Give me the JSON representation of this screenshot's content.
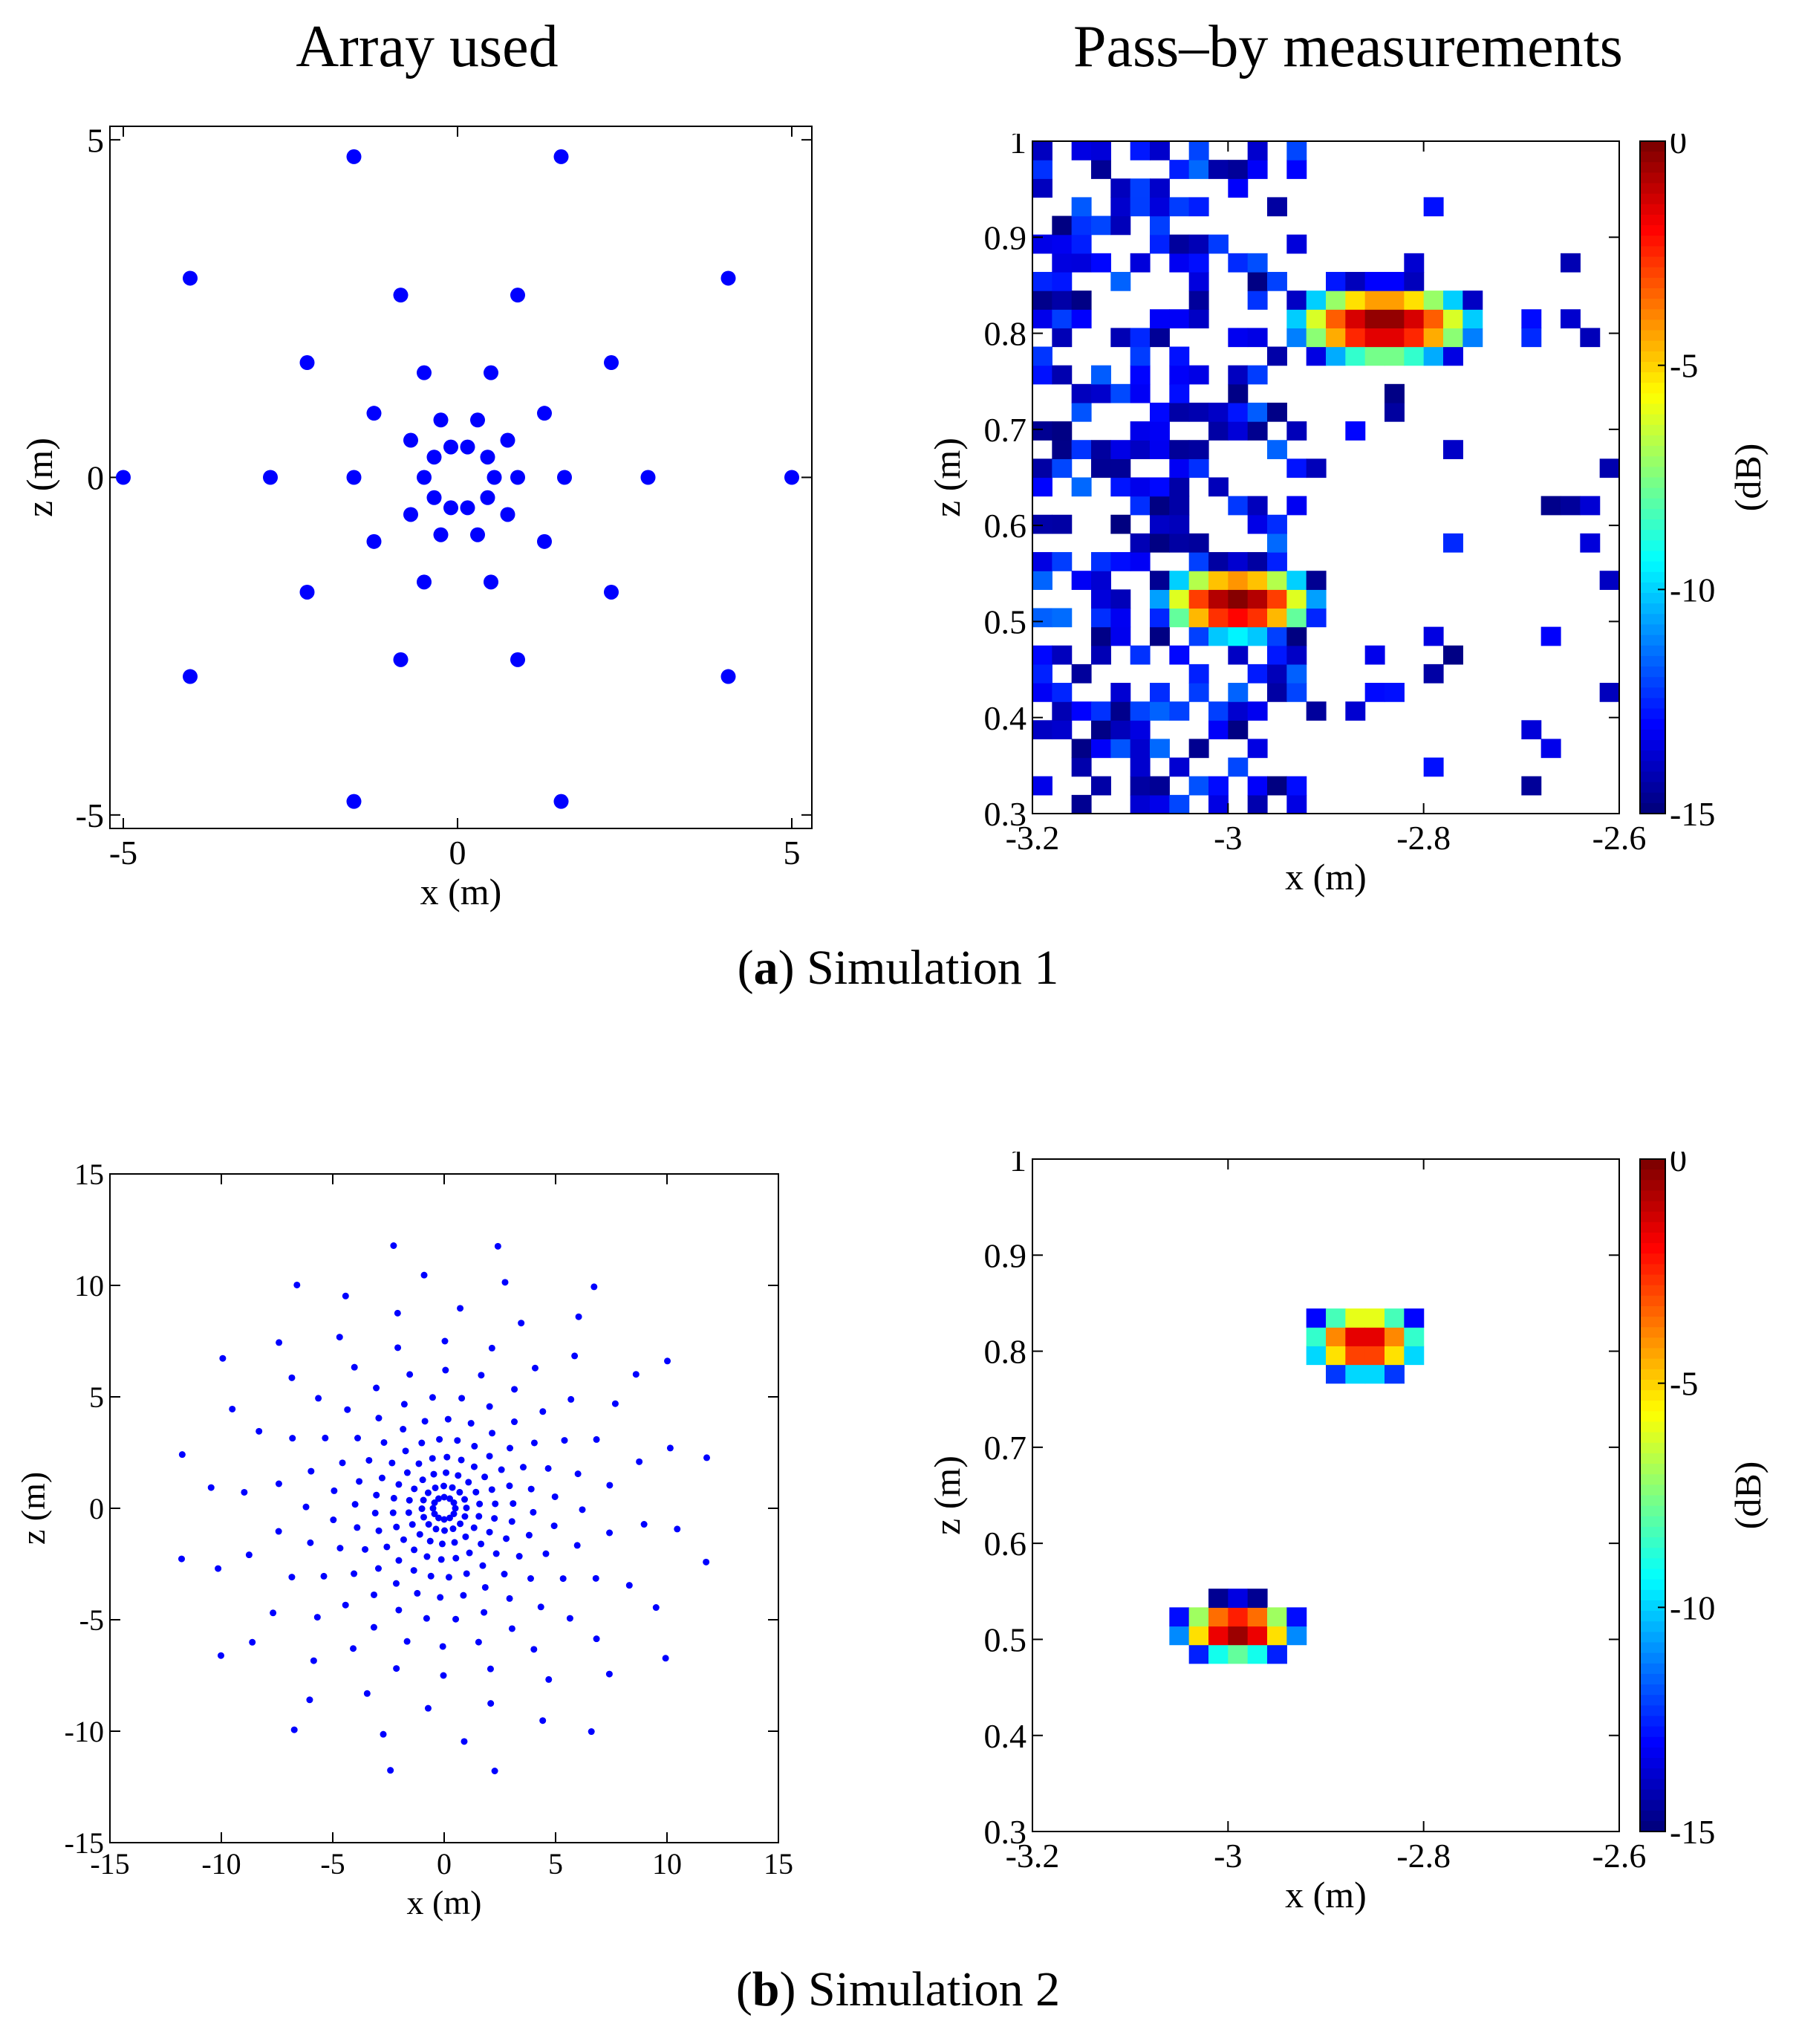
{
  "column_titles": {
    "left": "Array used",
    "right": "Pass–by measurements"
  },
  "captions": [
    {
      "open": "(",
      "letter": "a",
      "close": ")",
      "text": " Simulation 1"
    },
    {
      "open": "(",
      "letter": "b",
      "close": ")",
      "text": " Simulation 2"
    }
  ],
  "colors": {
    "marker": "#0000ff",
    "axis": "#000000"
  },
  "colormap": "jet",
  "chart_data": [
    {
      "id": "array1",
      "type": "scatter",
      "title": "",
      "xlabel": "x (m)",
      "ylabel": "z (m)",
      "xlim": [
        -5.2,
        5.3
      ],
      "ylim": [
        -5.2,
        5.2
      ],
      "xticks": [
        -5,
        0,
        5
      ],
      "yticks": [
        -5,
        0,
        5
      ],
      "marker": "large dot",
      "points": [
        [
          -1.55,
          4.75
        ],
        [
          1.55,
          4.75
        ],
        [
          -4.0,
          2.95
        ],
        [
          4.05,
          2.95
        ],
        [
          -0.85,
          2.7
        ],
        [
          0.9,
          2.7
        ],
        [
          -2.25,
          1.7
        ],
        [
          2.3,
          1.7
        ],
        [
          -0.5,
          1.55
        ],
        [
          0.5,
          1.55
        ],
        [
          -1.25,
          0.95
        ],
        [
          1.3,
          0.95
        ],
        [
          -0.25,
          0.85
        ],
        [
          0.3,
          0.85
        ],
        [
          -0.7,
          0.55
        ],
        [
          0.75,
          0.55
        ],
        [
          -0.1,
          0.45
        ],
        [
          0.15,
          0.45
        ],
        [
          -0.35,
          0.3
        ],
        [
          0.45,
          0.3
        ],
        [
          -5.0,
          0.0
        ],
        [
          -2.8,
          0.0
        ],
        [
          -1.55,
          0.0
        ],
        [
          -0.5,
          0.0
        ],
        [
          0.55,
          0.0
        ],
        [
          0.9,
          0.0
        ],
        [
          1.6,
          0.0
        ],
        [
          2.85,
          0.0
        ],
        [
          5.0,
          0.0
        ],
        [
          -0.35,
          -0.3
        ],
        [
          0.45,
          -0.3
        ],
        [
          -0.1,
          -0.45
        ],
        [
          0.15,
          -0.45
        ],
        [
          -0.7,
          -0.55
        ],
        [
          0.75,
          -0.55
        ],
        [
          -0.25,
          -0.85
        ],
        [
          0.3,
          -0.85
        ],
        [
          -1.25,
          -0.95
        ],
        [
          1.3,
          -0.95
        ],
        [
          -0.5,
          -1.55
        ],
        [
          0.5,
          -1.55
        ],
        [
          -2.25,
          -1.7
        ],
        [
          2.3,
          -1.7
        ],
        [
          -0.85,
          -2.7
        ],
        [
          0.9,
          -2.7
        ],
        [
          -4.0,
          -2.95
        ],
        [
          4.05,
          -2.95
        ],
        [
          -1.55,
          -4.8
        ],
        [
          1.55,
          -4.8
        ]
      ]
    },
    {
      "id": "map1",
      "type": "heatmap",
      "xlabel": "x (m)",
      "ylabel": "z (m)",
      "xlim": [
        -3.2,
        -2.6
      ],
      "ylim": [
        0.3,
        1.0
      ],
      "xticks": [
        -3.2,
        -3,
        -2.8,
        -2.6
      ],
      "xticklabels": [
        "-3.2",
        "-3",
        "-2.8",
        "-2.6"
      ],
      "yticks": [
        0.3,
        0.4,
        0.5,
        0.6,
        0.7,
        0.8,
        0.9,
        1.0
      ],
      "yticklabels": [
        "0.3",
        "0.4",
        "0.5",
        "0.6",
        "0.7",
        "0.8",
        "0.9",
        "1"
      ],
      "grid_cells": [
        30,
        36
      ],
      "colorbar": {
        "label": "(dB)",
        "range": [
          -15,
          0
        ],
        "ticks": [
          0,
          -5,
          -10,
          -15
        ],
        "ticklabels": [
          "0",
          "-5",
          "-10",
          "-15"
        ]
      },
      "sources": [
        {
          "x": -2.84,
          "z": 0.81,
          "peak": 0,
          "sx": 0.07,
          "sz": 0.03
        },
        {
          "x": -2.99,
          "z": 0.52,
          "peak": 0,
          "sx": 0.06,
          "sz": 0.028
        }
      ],
      "noise_floor_db": -15,
      "noise_density": 0.45,
      "noise_seed": 7
    },
    {
      "id": "array2",
      "type": "scatter",
      "title": "",
      "xlabel": "x (m)",
      "ylabel": "z (m)",
      "xlim": [
        -15,
        15
      ],
      "ylim": [
        -15,
        15
      ],
      "xticks": [
        -15,
        -10,
        -5,
        0,
        5,
        10,
        15
      ],
      "yticks": [
        -15,
        -10,
        -5,
        0,
        5,
        10,
        15
      ],
      "marker": "small dot",
      "rings": [
        {
          "radius": 0.5,
          "count": 12
        },
        {
          "radius": 1.0,
          "count": 16
        },
        {
          "radius": 1.6,
          "count": 18
        },
        {
          "radius": 2.3,
          "count": 22
        },
        {
          "radius": 3.1,
          "count": 24
        },
        {
          "radius": 4.0,
          "count": 24
        },
        {
          "radius": 5.0,
          "count": 24
        },
        {
          "radius": 6.2,
          "count": 24
        },
        {
          "radius": 7.5,
          "count": 22
        },
        {
          "radius": 9.0,
          "count": 20
        },
        {
          "radius": 10.5,
          "count": 18
        },
        {
          "radius": 12.0,
          "count": 16
        }
      ]
    },
    {
      "id": "map2",
      "type": "heatmap",
      "xlabel": "x (m)",
      "ylabel": "z (m)",
      "xlim": [
        -3.2,
        -2.6
      ],
      "ylim": [
        0.3,
        1.0
      ],
      "xticks": [
        -3.2,
        -3,
        -2.8,
        -2.6
      ],
      "xticklabels": [
        "-3.2",
        "-3",
        "-2.8",
        "-2.6"
      ],
      "yticks": [
        0.3,
        0.4,
        0.5,
        0.6,
        0.7,
        0.8,
        0.9,
        1.0
      ],
      "yticklabels": [
        "0.3",
        "0.4",
        "0.5",
        "0.6",
        "0.7",
        "0.8",
        "0.9",
        "1"
      ],
      "grid_cells": [
        30,
        36
      ],
      "colorbar": {
        "label": "(dB)",
        "range": [
          -15,
          0
        ],
        "ticks": [
          0,
          -5,
          -10,
          -15
        ],
        "ticklabels": [
          "0",
          "-5",
          "-10",
          "-15"
        ]
      },
      "sources": [
        {
          "x": -2.86,
          "z": 0.81,
          "peak": -1,
          "sx": 0.045,
          "sz": 0.028
        },
        {
          "x": -2.99,
          "z": 0.51,
          "peak": 0,
          "sx": 0.045,
          "sz": 0.022
        }
      ],
      "noise_floor_db": -15,
      "noise_density": 0.0,
      "noise_seed": 3
    }
  ]
}
